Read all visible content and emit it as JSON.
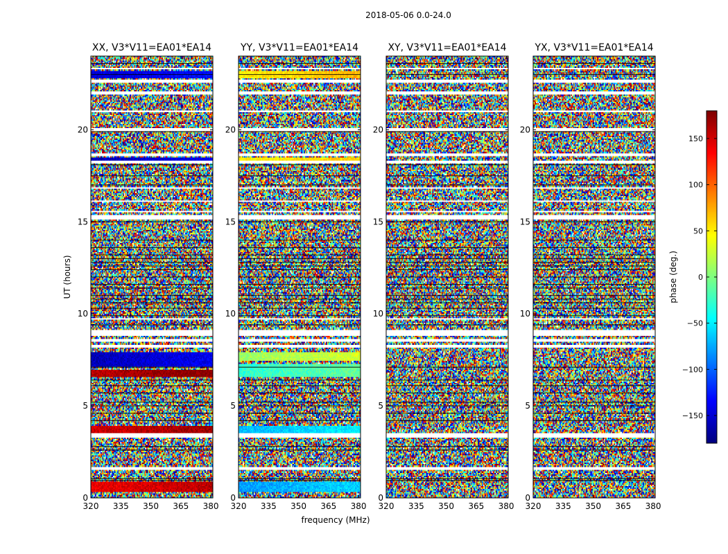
{
  "chart_data": {
    "type": "heatmap",
    "suptitle": "2018-05-06 0.0-24.0",
    "xlabel": "frequency (MHz)",
    "ylabel": "UT (hours)",
    "xlim": [
      320,
      381
    ],
    "ylim": [
      0,
      24
    ],
    "xticks": [
      320,
      335,
      350,
      365,
      380
    ],
    "yticks": [
      0,
      5,
      10,
      15,
      20
    ],
    "colorscale": "jet",
    "colorbar": {
      "label": "phase (deg.)",
      "range": [
        -180,
        180
      ],
      "ticks": [
        -150,
        -100,
        -50,
        0,
        50,
        100,
        150
      ]
    },
    "grid": false,
    "panels": [
      {
        "title": "XX, V3*V11=EA01*EA14",
        "coherent_bands": [
          {
            "t0": 0.35,
            "t1": 0.9,
            "phase": 150
          },
          {
            "t0": 3.55,
            "t1": 3.95,
            "phase": 160
          },
          {
            "t0": 6.6,
            "t1": 7.0,
            "phase": 170
          },
          {
            "t0": 7.1,
            "t1": 7.9,
            "phase": -150
          },
          {
            "t0": 18.3,
            "t1": 18.5,
            "phase": -150
          },
          {
            "t0": 22.8,
            "t1": 23.2,
            "phase": -140
          }
        ]
      },
      {
        "title": "YY, V3*V11=EA01*EA14",
        "coherent_bands": [
          {
            "t0": 0.3,
            "t1": 0.9,
            "phase": -70
          },
          {
            "t0": 3.5,
            "t1": 3.9,
            "phase": -60
          },
          {
            "t0": 6.6,
            "t1": 7.3,
            "phase": -20
          },
          {
            "t0": 7.4,
            "t1": 7.9,
            "phase": 20
          },
          {
            "t0": 18.3,
            "t1": 18.5,
            "phase": 55
          },
          {
            "t0": 22.8,
            "t1": 23.2,
            "phase": 60
          }
        ]
      },
      {
        "title": "XY, V3*V11=EA01*EA14",
        "coherent_bands": []
      },
      {
        "title": "YX, V3*V11=EA01*EA14",
        "coherent_bands": []
      }
    ],
    "flagged_time_ranges": [
      [
        1.5,
        1.7
      ],
      [
        3.3,
        3.5
      ],
      [
        8.15,
        8.3
      ],
      [
        8.5,
        8.65
      ],
      [
        8.8,
        9.1
      ],
      [
        9.7,
        9.8
      ],
      [
        15.1,
        15.4
      ],
      [
        15.5,
        15.6
      ],
      [
        16.1,
        16.2
      ],
      [
        16.8,
        16.9
      ],
      [
        18.15,
        18.3
      ],
      [
        18.6,
        18.75
      ],
      [
        19.95,
        20.05
      ],
      [
        21.0,
        21.05
      ],
      [
        21.95,
        22.1
      ],
      [
        22.6,
        22.7
      ],
      [
        23.3,
        23.4
      ]
    ],
    "dark_time_lines": [
      0.95,
      1.05,
      2.6,
      2.8,
      4.2,
      4.6,
      5.0,
      5.2,
      5.7,
      6.1,
      6.4,
      7.1,
      9.4,
      9.9,
      10.3,
      10.6,
      10.8,
      11.0,
      11.4,
      11.6,
      12.0,
      12.4,
      12.6,
      12.8,
      13.0,
      13.2,
      13.6,
      14.0,
      15.0,
      17.0,
      17.5,
      18.1,
      19.9,
      23.0,
      23.6
    ]
  }
}
